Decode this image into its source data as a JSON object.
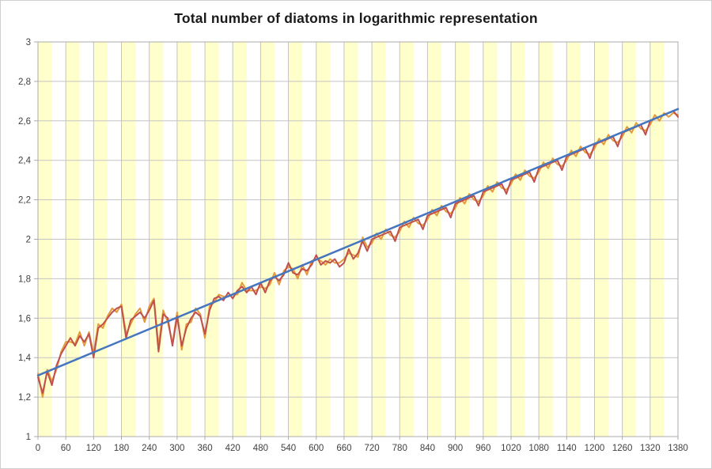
{
  "chart_data": {
    "type": "line",
    "title": "Total number of diatoms in logarithmic representation",
    "xlabel": "",
    "ylabel": "",
    "xlim": [
      0,
      1380
    ],
    "ylim": [
      1,
      3
    ],
    "grid": true,
    "legend": "none",
    "x_tick_values": [
      0,
      60,
      120,
      180,
      240,
      300,
      360,
      420,
      480,
      540,
      600,
      660,
      720,
      780,
      840,
      900,
      960,
      1020,
      1080,
      1140,
      1200,
      1260,
      1320,
      1380
    ],
    "x_tick_labels": [
      "0",
      "60",
      "120",
      "180",
      "240",
      "300",
      "360",
      "420",
      "480",
      "540",
      "600",
      "660",
      "720",
      "780",
      "840",
      "900",
      "960",
      "1020",
      "1080",
      "1140",
      "1200",
      "1260",
      "1320",
      "1380"
    ],
    "y_tick_values": [
      3,
      2.8,
      2.6,
      2.4,
      2.2,
      2,
      1.8,
      1.6,
      1.4,
      1.2,
      1
    ],
    "y_tick_labels": [
      "3",
      "2,8",
      "2,6",
      "2,4",
      "2,2",
      "2",
      "1,8",
      "1,6",
      "1,4",
      "1,2",
      "1"
    ],
    "plot_bands": {
      "period": 60,
      "band_width": 30,
      "color": "#FFFFCC"
    },
    "colors": {
      "gridline": "#C3C3C3",
      "axis_border": "#ABABAB",
      "tick_label": "#404040",
      "title": "#1a1a1a",
      "red_series": "#C0504D",
      "orange_series": "#E39B3B",
      "trend_line": "#4576BE",
      "frame_border": "#CFCFCF",
      "background": "#FFFFFF"
    },
    "series": [
      {
        "name": "orange-series",
        "color_key": "orange_series",
        "x_start": 0,
        "x_step": 10,
        "y": [
          1.32,
          1.2,
          1.34,
          1.28,
          1.34,
          1.43,
          1.48,
          1.48,
          1.47,
          1.53,
          1.46,
          1.53,
          1.42,
          1.57,
          1.55,
          1.61,
          1.65,
          1.63,
          1.67,
          1.52,
          1.57,
          1.62,
          1.65,
          1.58,
          1.66,
          1.7,
          1.46,
          1.64,
          1.58,
          1.47,
          1.63,
          1.44,
          1.57,
          1.58,
          1.65,
          1.62,
          1.5,
          1.66,
          1.68,
          1.72,
          1.71,
          1.71,
          1.72,
          1.72,
          1.78,
          1.74,
          1.74,
          1.74,
          1.76,
          1.75,
          1.77,
          1.83,
          1.77,
          1.84,
          1.86,
          1.85,
          1.8,
          1.87,
          1.82,
          1.89,
          1.9,
          1.89,
          1.87,
          1.9,
          1.88,
          1.88,
          1.9,
          1.93,
          1.92,
          1.91,
          2.01,
          1.96,
          1.98,
          2.03,
          2.0,
          2.05,
          2.02,
          2.01,
          2.04,
          2.09,
          2.06,
          2.11,
          2.08,
          2.07,
          2.1,
          2.15,
          2.12,
          2.17,
          2.14,
          2.13,
          2.16,
          2.21,
          2.18,
          2.23,
          2.2,
          2.19,
          2.22,
          2.27,
          2.24,
          2.29,
          2.26,
          2.25,
          2.28,
          2.33,
          2.3,
          2.35,
          2.32,
          2.31,
          2.34,
          2.39,
          2.36,
          2.41,
          2.38,
          2.37,
          2.4,
          2.45,
          2.42,
          2.47,
          2.44,
          2.43,
          2.46,
          2.51,
          2.48,
          2.53,
          2.5,
          2.49,
          2.52,
          2.57,
          2.54,
          2.59,
          2.56,
          2.55,
          2.58,
          2.63,
          2.6,
          2.64,
          2.62,
          2.64,
          2.63
        ]
      },
      {
        "name": "red-series",
        "color_key": "red_series",
        "x_start": 0,
        "x_step": 10,
        "y": [
          1.3,
          1.22,
          1.33,
          1.26,
          1.36,
          1.42,
          1.46,
          1.5,
          1.46,
          1.51,
          1.48,
          1.52,
          1.4,
          1.55,
          1.57,
          1.6,
          1.63,
          1.65,
          1.66,
          1.5,
          1.59,
          1.61,
          1.63,
          1.6,
          1.64,
          1.69,
          1.43,
          1.62,
          1.6,
          1.46,
          1.61,
          1.46,
          1.55,
          1.6,
          1.63,
          1.61,
          1.52,
          1.64,
          1.7,
          1.71,
          1.69,
          1.73,
          1.7,
          1.74,
          1.76,
          1.73,
          1.76,
          1.72,
          1.78,
          1.73,
          1.79,
          1.81,
          1.79,
          1.82,
          1.88,
          1.83,
          1.82,
          1.85,
          1.84,
          1.87,
          1.92,
          1.87,
          1.89,
          1.88,
          1.9,
          1.86,
          1.88,
          1.95,
          1.9,
          1.93,
          1.99,
          1.94,
          2.0,
          2.01,
          2.02,
          2.03,
          2.04,
          1.99,
          2.06,
          2.07,
          2.08,
          2.09,
          2.1,
          2.05,
          2.12,
          2.13,
          2.14,
          2.15,
          2.16,
          2.11,
          2.18,
          2.19,
          2.2,
          2.21,
          2.22,
          2.17,
          2.24,
          2.25,
          2.26,
          2.27,
          2.28,
          2.23,
          2.3,
          2.31,
          2.32,
          2.33,
          2.34,
          2.29,
          2.36,
          2.37,
          2.38,
          2.39,
          2.4,
          2.35,
          2.42,
          2.43,
          2.44,
          2.45,
          2.46,
          2.41,
          2.48,
          2.49,
          2.5,
          2.51,
          2.52,
          2.47,
          2.54,
          2.55,
          2.56,
          2.57,
          2.58,
          2.53,
          2.6,
          2.61,
          2.62,
          2.63,
          2.64,
          2.65,
          2.62
        ]
      },
      {
        "name": "trend-line",
        "color_key": "trend_line",
        "x": [
          0,
          1380
        ],
        "y": [
          1.31,
          2.66
        ]
      }
    ]
  }
}
